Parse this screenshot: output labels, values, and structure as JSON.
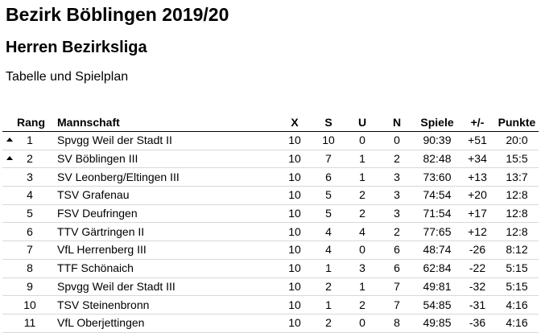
{
  "header": {
    "title": "Bezirk Böblingen 2019/20",
    "league": "Herren Bezirksliga",
    "subtitle": "Tabelle und Spielplan"
  },
  "table": {
    "columns": {
      "rang": "Rang",
      "mannschaft": "Mannschaft",
      "x": "X",
      "s": "S",
      "u": "U",
      "n": "N",
      "spiele": "Spiele",
      "diff": "+/-",
      "punkte": "Punkte"
    },
    "rows": [
      {
        "up": true,
        "rang": "1",
        "mannschaft": "Spvgg Weil der Stadt II",
        "x": "10",
        "s": "10",
        "u": "0",
        "n": "0",
        "spiele": "90:39",
        "diff": "+51",
        "punkte": "20:0"
      },
      {
        "up": true,
        "rang": "2",
        "mannschaft": "SV Böblingen III",
        "x": "10",
        "s": "7",
        "u": "1",
        "n": "2",
        "spiele": "82:48",
        "diff": "+34",
        "punkte": "15:5"
      },
      {
        "up": false,
        "rang": "3",
        "mannschaft": "SV Leonberg/Eltingen III",
        "x": "10",
        "s": "6",
        "u": "1",
        "n": "3",
        "spiele": "73:60",
        "diff": "+13",
        "punkte": "13:7"
      },
      {
        "up": false,
        "rang": "4",
        "mannschaft": "TSV Grafenau",
        "x": "10",
        "s": "5",
        "u": "2",
        "n": "3",
        "spiele": "74:54",
        "diff": "+20",
        "punkte": "12:8"
      },
      {
        "up": false,
        "rang": "5",
        "mannschaft": "FSV Deufringen",
        "x": "10",
        "s": "5",
        "u": "2",
        "n": "3",
        "spiele": "71:54",
        "diff": "+17",
        "punkte": "12:8"
      },
      {
        "up": false,
        "rang": "6",
        "mannschaft": "TTV Gärtringen II",
        "x": "10",
        "s": "4",
        "u": "4",
        "n": "2",
        "spiele": "77:65",
        "diff": "+12",
        "punkte": "12:8"
      },
      {
        "up": false,
        "rang": "7",
        "mannschaft": "VfL Herrenberg III",
        "x": "10",
        "s": "4",
        "u": "0",
        "n": "6",
        "spiele": "48:74",
        "diff": "-26",
        "punkte": "8:12"
      },
      {
        "up": false,
        "rang": "8",
        "mannschaft": "TTF Schönaich",
        "x": "10",
        "s": "1",
        "u": "3",
        "n": "6",
        "spiele": "62:84",
        "diff": "-22",
        "punkte": "5:15"
      },
      {
        "up": false,
        "rang": "9",
        "mannschaft": "Spvgg Weil der Stadt III",
        "x": "10",
        "s": "2",
        "u": "1",
        "n": "7",
        "spiele": "49:81",
        "diff": "-32",
        "punkte": "5:15"
      },
      {
        "up": false,
        "rang": "10",
        "mannschaft": "TSV Steinenbronn",
        "x": "10",
        "s": "1",
        "u": "2",
        "n": "7",
        "spiele": "54:85",
        "diff": "-31",
        "punkte": "4:16"
      },
      {
        "up": false,
        "rang": "11",
        "mannschaft": "VfL Oberjettingen",
        "x": "10",
        "s": "2",
        "u": "0",
        "n": "8",
        "spiele": "49:85",
        "diff": "-36",
        "punkte": "4:16"
      }
    ]
  }
}
